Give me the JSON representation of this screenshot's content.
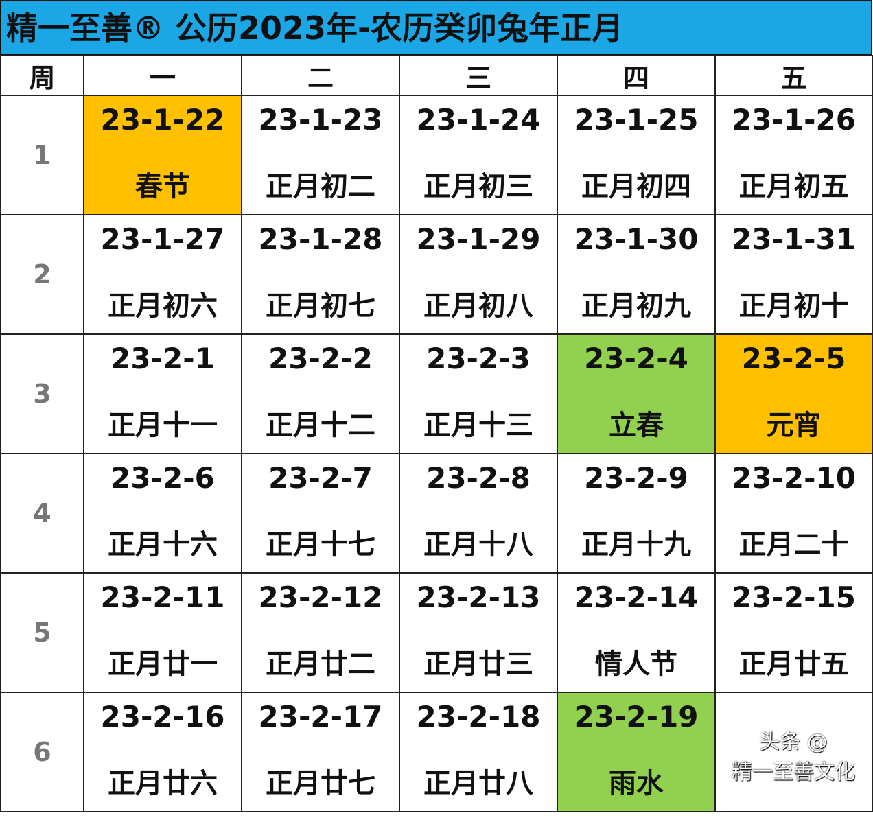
{
  "title": "精一至善® 公历2023年-农历癸卯兔年正月",
  "colors": {
    "title_bg": "#1ba6e6",
    "festival": "#ffc000",
    "solar_term": "#92d050"
  },
  "header": [
    "周",
    "一",
    "二",
    "三",
    "四",
    "五"
  ],
  "weeks": [
    {
      "num": "1",
      "days": [
        {
          "date": "23-1-22",
          "lunar": "春节",
          "hl": "festival"
        },
        {
          "date": "23-1-23",
          "lunar": "正月初二"
        },
        {
          "date": "23-1-24",
          "lunar": "正月初三"
        },
        {
          "date": "23-1-25",
          "lunar": "正月初四"
        },
        {
          "date": "23-1-26",
          "lunar": "正月初五"
        }
      ]
    },
    {
      "num": "2",
      "days": [
        {
          "date": "23-1-27",
          "lunar": "正月初六"
        },
        {
          "date": "23-1-28",
          "lunar": "正月初七"
        },
        {
          "date": "23-1-29",
          "lunar": "正月初八"
        },
        {
          "date": "23-1-30",
          "lunar": "正月初九"
        },
        {
          "date": "23-1-31",
          "lunar": "正月初十"
        }
      ]
    },
    {
      "num": "3",
      "days": [
        {
          "date": "23-2-1",
          "lunar": "正月十一"
        },
        {
          "date": "23-2-2",
          "lunar": "正月十二"
        },
        {
          "date": "23-2-3",
          "lunar": "正月十三"
        },
        {
          "date": "23-2-4",
          "lunar": "立春",
          "hl": "solar_term"
        },
        {
          "date": "23-2-5",
          "lunar": "元宵",
          "hl": "festival"
        }
      ]
    },
    {
      "num": "4",
      "days": [
        {
          "date": "23-2-6",
          "lunar": "正月十六"
        },
        {
          "date": "23-2-7",
          "lunar": "正月十七"
        },
        {
          "date": "23-2-8",
          "lunar": "正月十八"
        },
        {
          "date": "23-2-9",
          "lunar": "正月十九"
        },
        {
          "date": "23-2-10",
          "lunar": "正月二十"
        }
      ]
    },
    {
      "num": "5",
      "days": [
        {
          "date": "23-2-11",
          "lunar": "正月廿一"
        },
        {
          "date": "23-2-12",
          "lunar": "正月廿二"
        },
        {
          "date": "23-2-13",
          "lunar": "正月廿三"
        },
        {
          "date": "23-2-14",
          "lunar": "情人节"
        },
        {
          "date": "23-2-15",
          "lunar": "正月廿五"
        }
      ]
    },
    {
      "num": "6",
      "days": [
        {
          "date": "23-2-16",
          "lunar": "正月廿六"
        },
        {
          "date": "23-2-17",
          "lunar": "正月廿七"
        },
        {
          "date": "23-2-18",
          "lunar": "正月廿八"
        },
        {
          "date": "23-2-19",
          "lunar": "雨水",
          "hl": "solar_term"
        },
        {
          "date": "",
          "lunar": ""
        }
      ]
    }
  ],
  "watermark": "头条 @精一至善文化"
}
